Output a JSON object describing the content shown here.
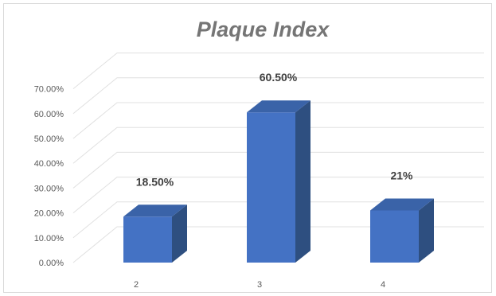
{
  "chart_data": {
    "type": "bar",
    "title": "Plaque Index",
    "categories": [
      "2",
      "3",
      "4"
    ],
    "values": [
      18.5,
      60.5,
      21
    ],
    "data_labels": [
      "18.50%",
      "60.50%",
      "21%"
    ],
    "ylim": [
      0,
      70
    ],
    "y_ticks": [
      "0.00%",
      "10.00%",
      "20.00%",
      "30.00%",
      "40.00%",
      "50.00%",
      "60.00%",
      "70.00%"
    ],
    "grid": true,
    "legend": "none",
    "colors": {
      "front": "#4472c4",
      "side": "#2e4f80",
      "top": "#3a63a8",
      "grid": "#e0e0e0"
    }
  }
}
